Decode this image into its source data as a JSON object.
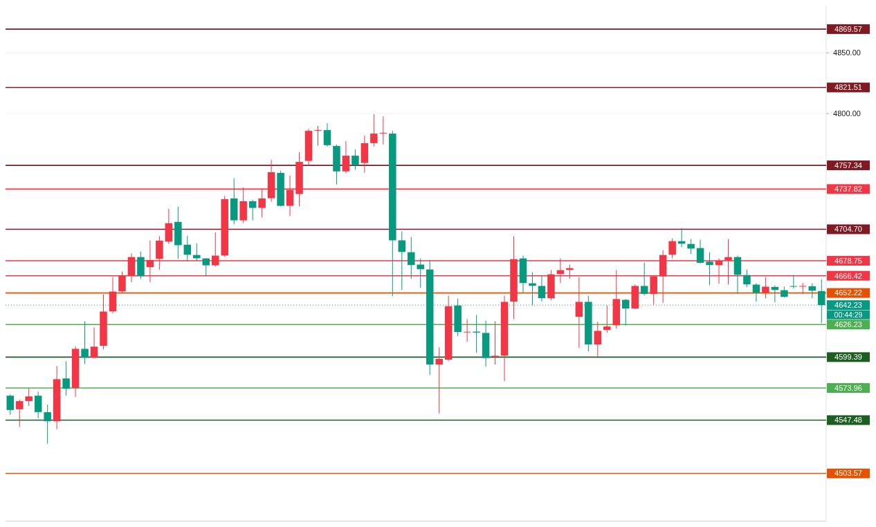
{
  "chart_data": {
    "type": "candlestick",
    "categories": [
      null,
      null,
      null,
      null,
      null,
      null,
      null,
      null,
      null,
      null,
      null,
      null,
      null,
      null,
      null,
      null,
      null,
      null,
      null,
      null,
      null,
      null,
      null,
      null,
      null,
      null,
      null,
      null,
      null,
      null,
      null,
      null,
      null,
      null,
      null,
      null,
      null,
      null,
      null,
      null,
      null,
      null,
      null,
      null,
      null,
      null,
      null,
      null,
      null,
      null,
      null,
      null,
      null,
      null,
      null,
      null,
      null,
      null,
      null,
      null,
      null,
      null,
      null,
      null,
      null,
      null,
      null,
      null,
      null,
      null,
      null,
      null,
      null,
      null,
      null,
      null,
      null,
      null,
      null,
      null,
      null,
      null,
      null,
      null,
      null,
      null,
      null,
      null
    ],
    "ohlc": [
      [
        4567.6,
        4568.7,
        4551.9,
        4555.8
      ],
      [
        4556.4,
        4564.4,
        4542.0,
        4563.1
      ],
      [
        4563.2,
        4573.9,
        4559.1,
        4567.0
      ],
      [
        4567.6,
        4571.0,
        4549.0,
        4554.1
      ],
      [
        4554.0,
        4560.2,
        4528.0,
        4546.6
      ],
      [
        4546.6,
        4592.0,
        4539.9,
        4581.2
      ],
      [
        4581.8,
        4596.0,
        4567.6,
        4573.3
      ],
      [
        4573.9,
        4608.3,
        4566.6,
        4606.2
      ],
      [
        4606.2,
        4629.0,
        4593.9,
        4598.9
      ],
      [
        4598.9,
        4623.9,
        4598.5,
        4608.0
      ],
      [
        4608.7,
        4651.0,
        4605.8,
        4636.9
      ],
      [
        4637.1,
        4665.2,
        4635.4,
        4653.4
      ],
      [
        4653.6,
        4669.9,
        4652.3,
        4666.5
      ],
      [
        4666.5,
        4684.7,
        4661.0,
        4681.8
      ],
      [
        4681.8,
        4686.4,
        4663.8,
        4666.1
      ],
      [
        4673.5,
        4695.5,
        4661.0,
        4679.4
      ],
      [
        4680.3,
        4699.0,
        4671.4,
        4695.3
      ],
      [
        4694.5,
        4721.6,
        4692.6,
        4709.7
      ],
      [
        4710.8,
        4723.3,
        4680.3,
        4691.6
      ],
      [
        4692.0,
        4699.4,
        4678.4,
        4683.7
      ],
      [
        4683.5,
        4693.2,
        4678.4,
        4680.8
      ],
      [
        4680.7,
        4680.9,
        4666.1,
        4675.0
      ],
      [
        4675.0,
        4702.1,
        4673.9,
        4683.0
      ],
      [
        4683.1,
        4732.2,
        4682.0,
        4729.5
      ],
      [
        4730.1,
        4746.6,
        4708.7,
        4712.1
      ],
      [
        4712.1,
        4739.2,
        4709.8,
        4727.8
      ],
      [
        4727.8,
        4729.0,
        4712.1,
        4722.3
      ],
      [
        4722.3,
        4738.1,
        4714.4,
        4730.1
      ],
      [
        4730.3,
        4761.9,
        4727.4,
        4751.7
      ],
      [
        4751.1,
        4752.8,
        4723.5,
        4724.0
      ],
      [
        4724.0,
        4748.9,
        4715.5,
        4737.1
      ],
      [
        4733.7,
        4768.2,
        4723.5,
        4760.2
      ],
      [
        4761.0,
        4787.5,
        4757.0,
        4785.8
      ],
      [
        4786.0,
        4789.8,
        4773.5,
        4786.4
      ],
      [
        4786.4,
        4792.0,
        4772.9,
        4774.0
      ],
      [
        4773.3,
        4774.4,
        4741.6,
        4752.4
      ],
      [
        4752.4,
        4777.3,
        4750.7,
        4765.3
      ],
      [
        4765.3,
        4770.5,
        4753.6,
        4757.4
      ],
      [
        4759.3,
        4781.8,
        4751.3,
        4775.6
      ],
      [
        4775.7,
        4799.4,
        4772.9,
        4783.5
      ],
      [
        4783.8,
        4797.7,
        4774.6,
        4784.2
      ],
      [
        4783.5,
        4785.8,
        4649.6,
        4695.6
      ],
      [
        4695.6,
        4703.0,
        4654.7,
        4686.0
      ],
      [
        4685.8,
        4698.3,
        4663.8,
        4675.2
      ],
      [
        4675.6,
        4680.7,
        4656.4,
        4671.8
      ],
      [
        4671.6,
        4679.5,
        4584.8,
        4593.3
      ],
      [
        4593.3,
        4607.4,
        4553.0,
        4597.9
      ],
      [
        4597.3,
        4650.0,
        4596.2,
        4641.3
      ],
      [
        4641.9,
        4647.7,
        4616.6,
        4620.0
      ],
      [
        4619.9,
        4630.7,
        4612.1,
        4620.3
      ],
      [
        4620.4,
        4634.1,
        4603.0,
        4619.6
      ],
      [
        4619.3,
        4629.5,
        4591.6,
        4598.7
      ],
      [
        4599.7,
        4629.0,
        4593.3,
        4600.5
      ],
      [
        4600.6,
        4650.0,
        4579.7,
        4644.9
      ],
      [
        4645.1,
        4698.9,
        4630.8,
        4680.1
      ],
      [
        4680.7,
        4683.0,
        4651.9,
        4660.4
      ],
      [
        4660.2,
        4669.3,
        4642.2,
        4658.1
      ],
      [
        4658.0,
        4667.0,
        4645.1,
        4647.9
      ],
      [
        4647.9,
        4671.0,
        4646.2,
        4667.6
      ],
      [
        4667.8,
        4680.7,
        4660.4,
        4671.0
      ],
      [
        4671.2,
        4675.6,
        4663.8,
        4672.7
      ],
      [
        4632.6,
        4665.2,
        4607.0,
        4644.9
      ],
      [
        4644.9,
        4650.0,
        4604.1,
        4609.8
      ],
      [
        4609.8,
        4628.4,
        4599.6,
        4621.0
      ],
      [
        4621.8,
        4642.0,
        4619.5,
        4624.6
      ],
      [
        4625.6,
        4671.0,
        4622.9,
        4647.2
      ],
      [
        4646.6,
        4647.2,
        4625.4,
        4639.4
      ],
      [
        4639.4,
        4659.1,
        4638.9,
        4658.0
      ],
      [
        4658.0,
        4677.1,
        4650.2,
        4651.5
      ],
      [
        4651.5,
        4666.5,
        4642.5,
        4665.9
      ],
      [
        4665.9,
        4687.5,
        4644.1,
        4683.5
      ],
      [
        4683.7,
        4697.2,
        4680.7,
        4694.9
      ],
      [
        4694.9,
        4705.7,
        4690.0,
        4692.8
      ],
      [
        4692.6,
        4696.6,
        4684.3,
        4688.8
      ],
      [
        4689.2,
        4696.0,
        4676.3,
        4677.1
      ],
      [
        4678.0,
        4685.8,
        4658.7,
        4675.2
      ],
      [
        4675.2,
        4680.7,
        4659.8,
        4678.8
      ],
      [
        4679.0,
        4696.6,
        4659.3,
        4681.8
      ],
      [
        4681.8,
        4683.0,
        4651.5,
        4667.2
      ],
      [
        4667.0,
        4671.6,
        4657.0,
        4659.3
      ],
      [
        4659.1,
        4660.2,
        4645.1,
        4652.4
      ],
      [
        4652.4,
        4665.3,
        4647.9,
        4657.4
      ],
      [
        4657.2,
        4658.5,
        4644.5,
        4654.7
      ],
      [
        4654.5,
        4657.4,
        4648.5,
        4649.0
      ],
      [
        4657.9,
        4667.0,
        4655.9,
        4657.6
      ],
      [
        4657.6,
        4660.4,
        4651.5,
        4658.0
      ],
      [
        4657.8,
        4660.2,
        4647.9,
        4654.1
      ],
      [
        4653.8,
        4663.6,
        4627.4,
        4642.23
      ]
    ],
    "colors": [
      "#089981",
      "#f23645",
      "#f23645",
      "#089981",
      "#089981",
      "#f23645",
      "#089981",
      "#f23645",
      "#089981",
      "#f23645",
      "#f23645",
      "#f23645",
      "#f23645",
      "#f23645",
      "#089981",
      "#f23645",
      "#f23645",
      "#f23645",
      "#089981",
      "#089981",
      "#089981",
      "#089981",
      "#f23645",
      "#f23645",
      "#089981",
      "#f23645",
      "#089981",
      "#f23645",
      "#f23645",
      "#089981",
      "#f23645",
      "#f23645",
      "#f23645",
      "#f23645",
      "#089981",
      "#089981",
      "#f23645",
      "#089981",
      "#f23645",
      "#f23645",
      "#f23645",
      "#089981",
      "#089981",
      "#089981",
      "#089981",
      "#089981",
      "#f23645",
      "#f23645",
      "#089981",
      "#f23645",
      "#089981",
      "#089981",
      "#f23645",
      "#f23645",
      "#f23645",
      "#089981",
      "#089981",
      "#089981",
      "#f23645",
      "#f23645",
      "#f23645",
      "#f23645",
      "#089981",
      "#f23645",
      "#f23645",
      "#f23645",
      "#089981",
      "#f23645",
      "#089981",
      "#f23645",
      "#f23645",
      "#f23645",
      "#089981",
      "#089981",
      "#089981",
      "#089981",
      "#f23645",
      "#f23645",
      "#089981",
      "#089981",
      "#089981",
      "#f23645",
      "#089981",
      "#089981",
      "#089981",
      "#f23645",
      "#089981",
      "#089981"
    ],
    "ylim": [
      4464,
      4889
    ],
    "yticks": [
      {
        "value": 4800,
        "label": "4800.00"
      },
      {
        "value": 4850,
        "label": "4850.00"
      }
    ],
    "grid": "y",
    "ref_lines": [
      {
        "axis": "y",
        "value": 4869.57,
        "label": "4869.57",
        "color": "#801922"
      },
      {
        "axis": "y",
        "value": 4821.51,
        "label": "4821.51",
        "color": "#801922"
      },
      {
        "axis": "y",
        "value": 4757.34,
        "label": "4757.34",
        "color": "#801922"
      },
      {
        "axis": "y",
        "value": 4737.82,
        "label": "4737.82",
        "color": "#f23645"
      },
      {
        "axis": "y",
        "value": 4704.7,
        "label": "4704.70",
        "color": "#801922"
      },
      {
        "axis": "y",
        "value": 4678.75,
        "label": "4678.75",
        "color": "#f23645"
      },
      {
        "axis": "y",
        "value": 4666.42,
        "label": "4666.42",
        "color": "#f23645"
      },
      {
        "axis": "y",
        "value": 4652.22,
        "label": "4652.22",
        "color": "#e65100"
      },
      {
        "axis": "y",
        "value": 4642.23,
        "label": "4642.23",
        "color": "#089981",
        "line_style": "dotted"
      },
      {
        "axis": "y",
        "value": 4626.23,
        "label": "4626.23",
        "color": "#4caf50"
      },
      {
        "axis": "y",
        "value": 4599.39,
        "label": "4599.39",
        "color": "#1b5e20"
      },
      {
        "axis": "y",
        "value": 4573.96,
        "label": "4573.96",
        "color": "#4caf50"
      },
      {
        "axis": "y",
        "value": 4547.48,
        "label": "4547.48",
        "color": "#1b5e20"
      },
      {
        "axis": "y",
        "value": 4503.57,
        "label": "4503.57",
        "color": "#e65100"
      }
    ],
    "annotations": [
      "00:44:29"
    ]
  }
}
